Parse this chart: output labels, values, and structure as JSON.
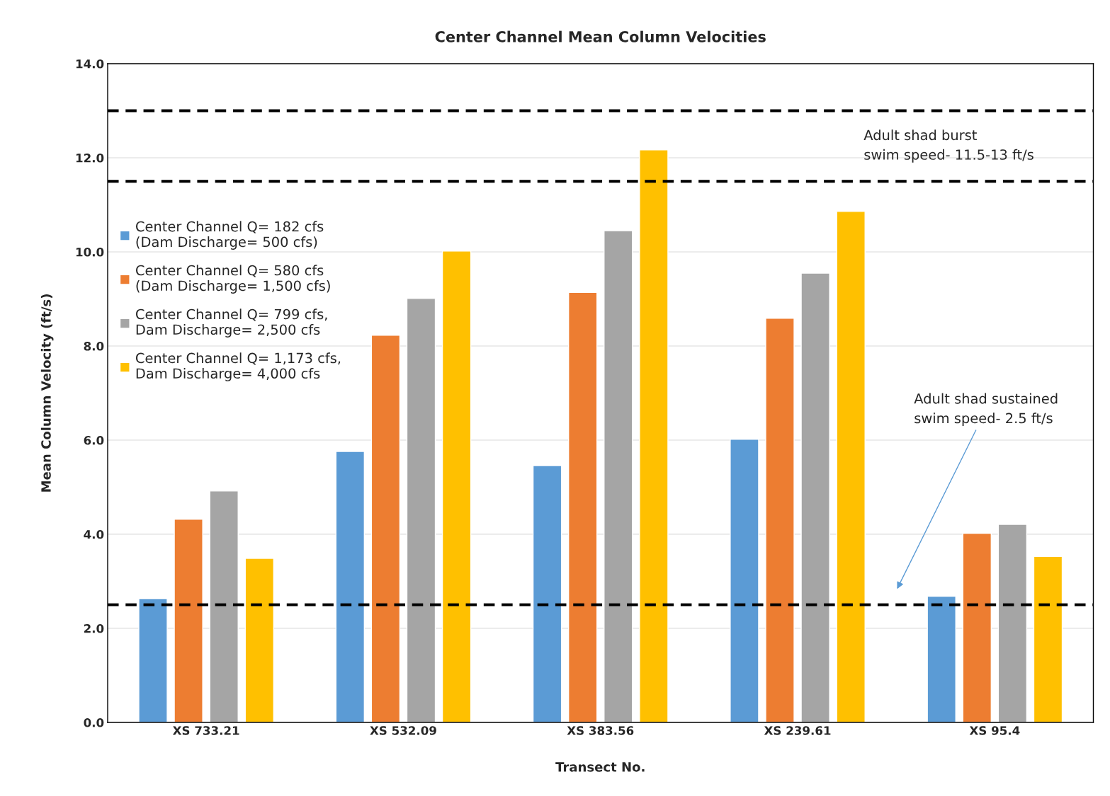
{
  "chart_data": {
    "type": "bar",
    "title": "Center Channel Mean Column Velocities",
    "xlabel": "Transect No.",
    "ylabel": "Mean Column Velocity (ft/s)",
    "categories": [
      "XS 733.21",
      "XS 532.09",
      "XS 383.56",
      "XS 239.61",
      "XS 95.4"
    ],
    "series": [
      {
        "name": "Center Channel Q= 182 cfs\n(Dam Discharge= 500 cfs)",
        "color": "#5b9bd5",
        "values": [
          2.63,
          5.76,
          5.46,
          6.02,
          2.68
        ]
      },
      {
        "name": "Center Channel Q= 580 cfs\n(Dam Discharge= 1,500 cfs)",
        "color": "#ed7d31",
        "values": [
          4.32,
          8.23,
          9.14,
          8.59,
          4.02
        ]
      },
      {
        "name": "Center Channel Q= 799 cfs,\nDam Discharge= 2,500 cfs",
        "color": "#a5a5a5",
        "values": [
          4.92,
          9.01,
          10.45,
          9.55,
          4.21
        ]
      },
      {
        "name": "Center Channel Q= 1,173 cfs,\nDam Discharge= 4,000 cfs",
        "color": "#ffc000",
        "values": [
          3.49,
          10.02,
          12.17,
          10.86,
          3.53
        ]
      }
    ],
    "ylim": [
      0,
      14
    ],
    "yticks": [
      {
        "value": 0,
        "label": "0.0"
      },
      {
        "value": 2,
        "label": "2.0"
      },
      {
        "value": 4,
        "label": "4.0"
      },
      {
        "value": 6,
        "label": "6.0"
      },
      {
        "value": 8,
        "label": "8.0"
      },
      {
        "value": 10,
        "label": "10.0"
      },
      {
        "value": 12,
        "label": "12.0"
      },
      {
        "value": 14,
        "label": "14.0"
      }
    ],
    "ref_lines": [
      {
        "axis": "y",
        "value": 13,
        "color": "#000000",
        "line_style": "dashed"
      },
      {
        "axis": "y",
        "value": 11.5,
        "color": "#000000",
        "line_style": "dashed"
      },
      {
        "axis": "y",
        "value": 2.5,
        "color": "#000000",
        "line_style": "dashed"
      }
    ],
    "annotations": [
      "Adult shad burst\nswim speed- 11.5-13 ft/s",
      "Adult shad sustained\nswim speed- 2.5 ft/s"
    ],
    "grid": "y",
    "legend": "top left"
  }
}
